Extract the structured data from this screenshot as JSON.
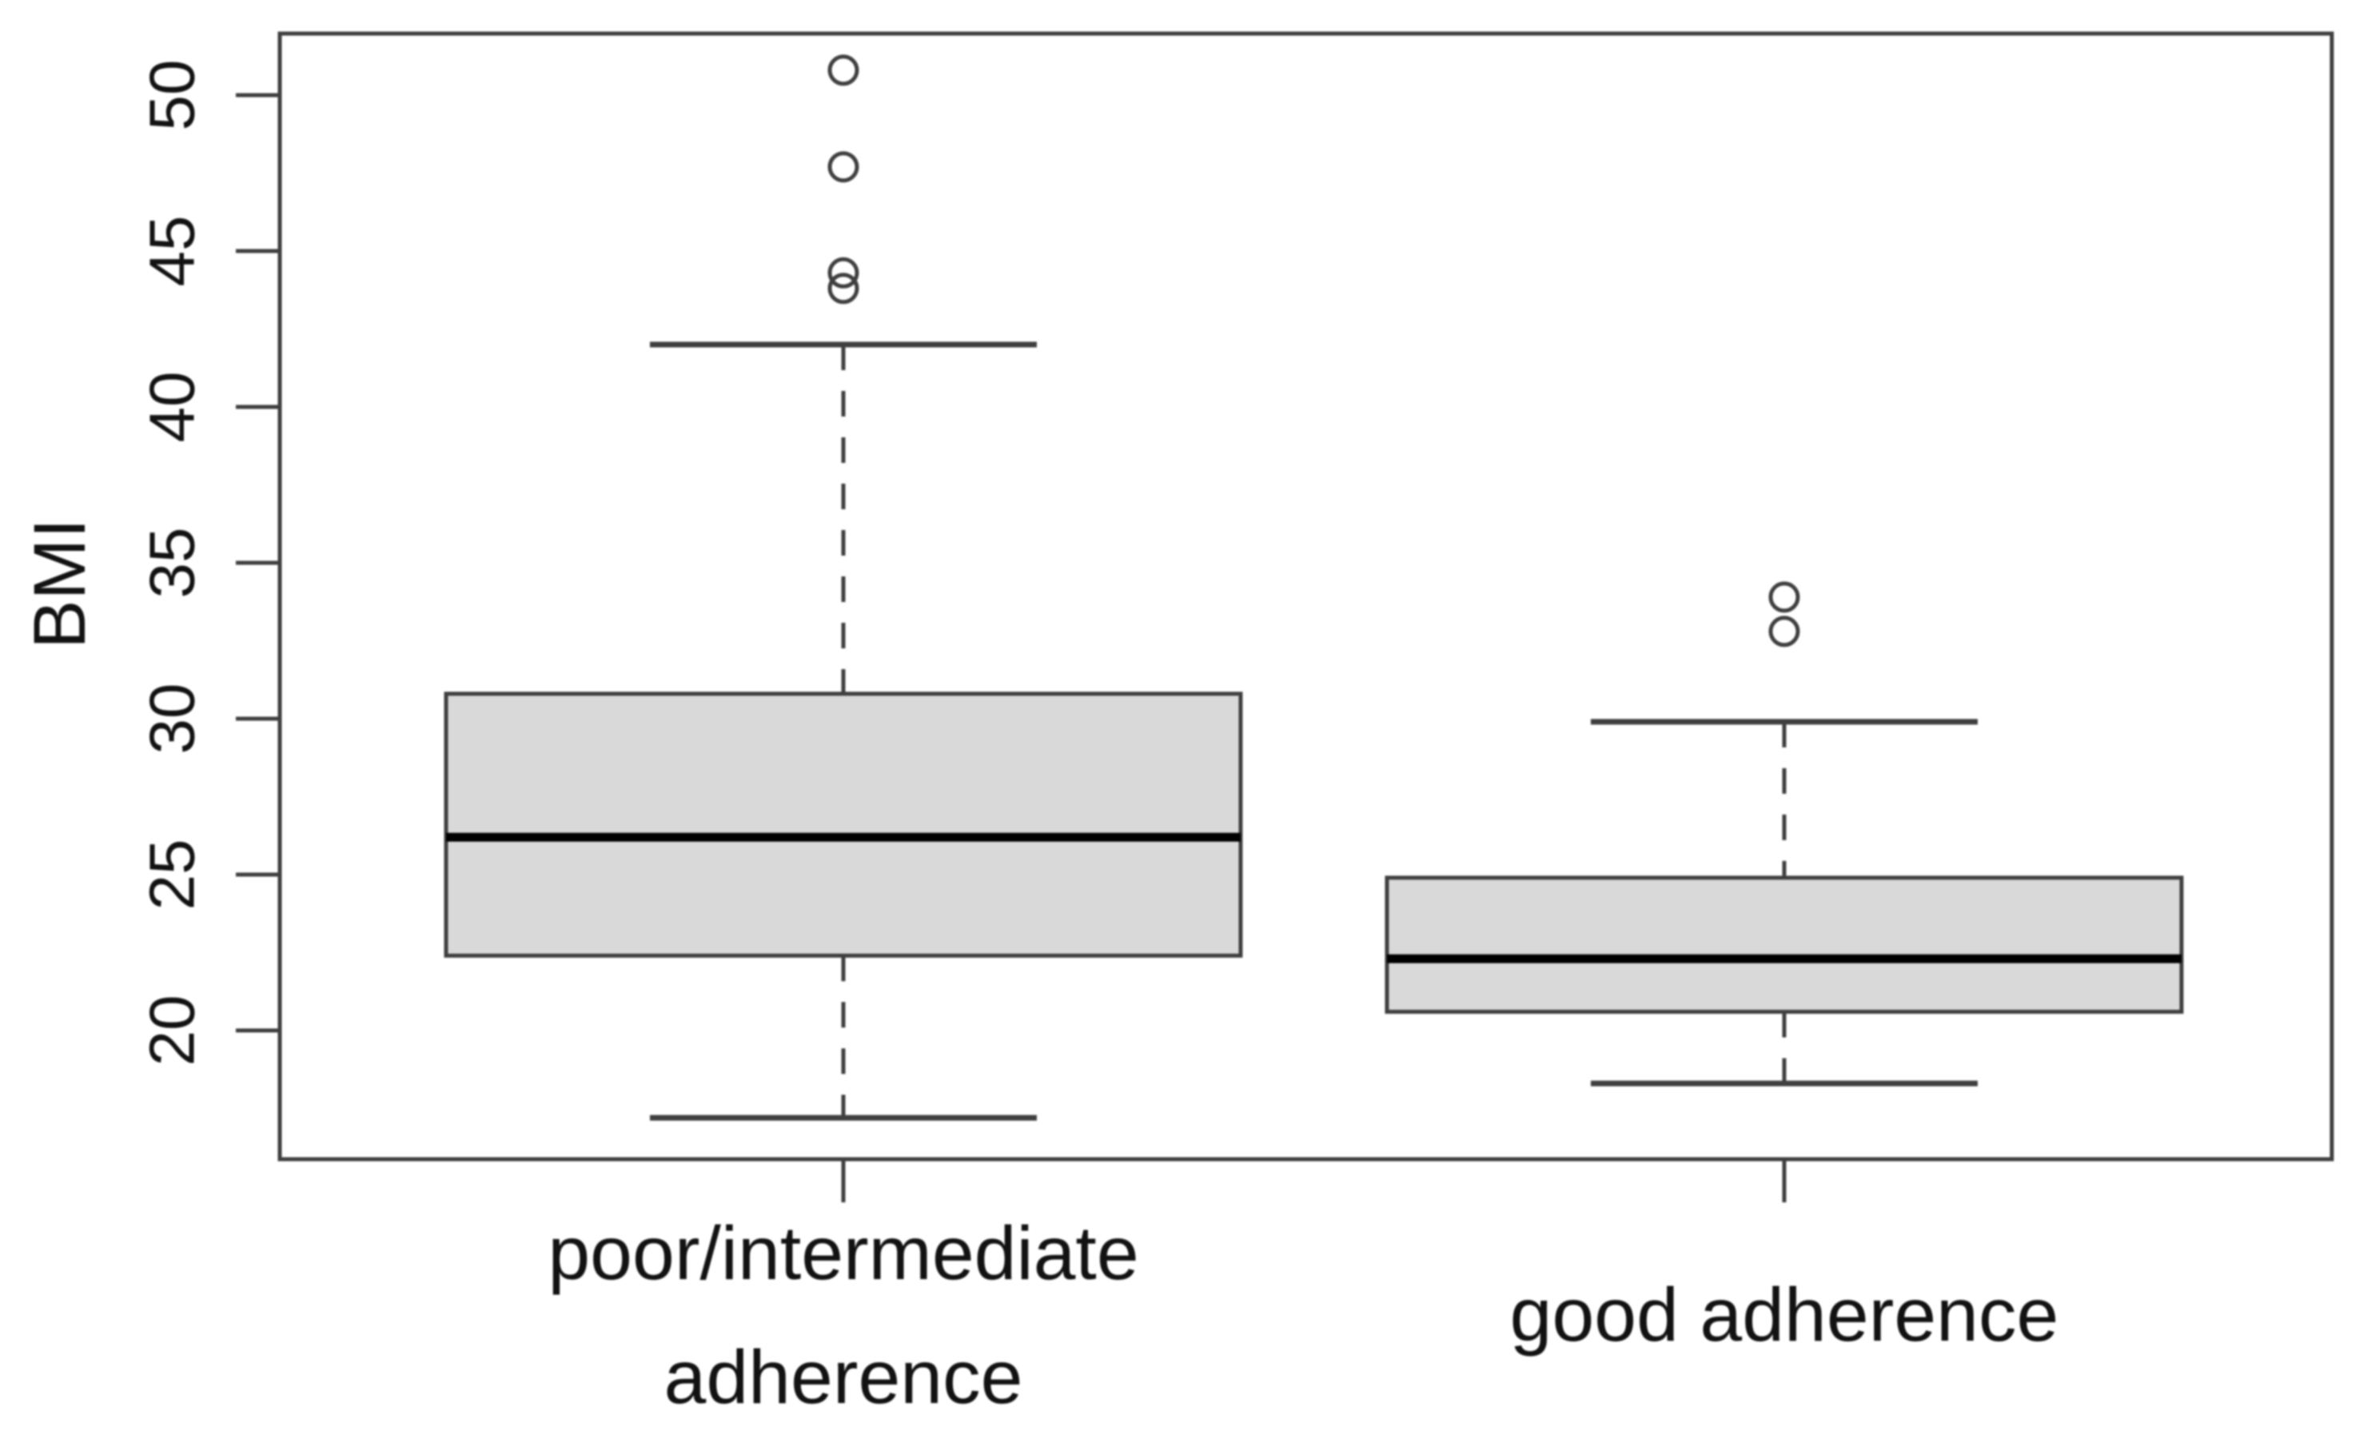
{
  "figure": {
    "background": "#ffffff",
    "description": "Boxplot of BMI by CPAP adherence group"
  },
  "chart_data": {
    "type": "boxplot",
    "ylabel": "BMI",
    "y_ticks": [
      20,
      25,
      30,
      35,
      40,
      45,
      50
    ],
    "ylim": [
      15.9,
      52.0
    ],
    "grid": false,
    "legend": "none",
    "categories": [
      {
        "label_lines": [
          "poor/intermediate",
          "adherence"
        ]
      },
      {
        "label_lines": [
          "good adherence"
        ]
      }
    ],
    "series": [
      {
        "name": "poor/intermediate adherence",
        "whisker_low": 17.2,
        "q1": 22.4,
        "median": 26.2,
        "q3": 30.8,
        "whisker_high": 42.0,
        "outliers": [
          43.8,
          44.3,
          47.7,
          50.8
        ]
      },
      {
        "name": "good adherence",
        "whisker_low": 18.3,
        "q1": 20.6,
        "median": 22.3,
        "q3": 24.9,
        "whisker_high": 29.9,
        "outliers": [
          32.8,
          33.9
        ]
      }
    ],
    "colors": {
      "box_fill": "#d9d9d9",
      "line": "#3f3f3f",
      "median": "#000000",
      "text": "#121212",
      "background": "#ffffff"
    }
  }
}
